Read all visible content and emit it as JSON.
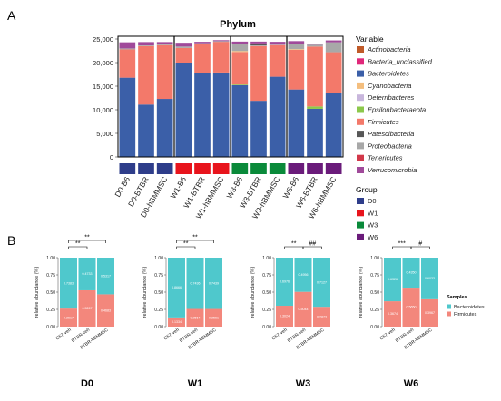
{
  "panel_a": {
    "letter": "A",
    "title": "Phylum",
    "legend_title": "Variable",
    "group_legend_title": "Group",
    "y_ticks": [
      "0",
      "5,000",
      "10,000",
      "15,000",
      "20,000",
      "25,000"
    ],
    "samples": [
      "D0-B6",
      "D0-BTBR",
      "D0-hBMMSC",
      "W1-B6",
      "W1-BTBR",
      "W1-hBMMSC",
      "W3-B6",
      "W3-BTBR",
      "W3-hBMMSC",
      "W6-B6",
      "W6-BTBR",
      "W6-hBMMSC"
    ],
    "phyla": [
      {
        "name": "Actinobacteria",
        "color": "#C05A28"
      },
      {
        "name": "Bacteria_unclassified",
        "color": "#E0287A"
      },
      {
        "name": "Bacteroidetes",
        "color": "#3B5FA8"
      },
      {
        "name": "Cyanobacteria",
        "color": "#F4BE7E"
      },
      {
        "name": "Deferribacteres",
        "color": "#C8B6DC"
      },
      {
        "name": "Epsilonbacteraeota",
        "color": "#8CC84B"
      },
      {
        "name": "Firmicutes",
        "color": "#F3796A"
      },
      {
        "name": "Patescibacteria",
        "color": "#575757"
      },
      {
        "name": "Proteobacteria",
        "color": "#A8A8A8"
      },
      {
        "name": "Tenericutes",
        "color": "#D2384A"
      },
      {
        "name": "Verrucomicrobia",
        "color": "#A04A9A"
      }
    ],
    "groups": [
      {
        "name": "D0",
        "color": "#2E3D8A"
      },
      {
        "name": "W1",
        "color": "#E8141C"
      },
      {
        "name": "W3",
        "color": "#0A8A3A"
      },
      {
        "name": "W6",
        "color": "#6A1B7A"
      }
    ]
  },
  "panel_b": {
    "letter": "B",
    "ylabel": "relative abundance (%)",
    "y_ticks": [
      "0.00",
      "0.25",
      "0.50",
      "0.75",
      "1.00"
    ],
    "legend_title": "Samples",
    "series": [
      {
        "name": "Bacteroidetes",
        "color": "#4FC8CC"
      },
      {
        "name": "Firmicutes",
        "color": "#F3877C"
      }
    ],
    "categories": [
      "C57-veh",
      "BTBR-veh",
      "BTBR-hBMMSC"
    ]
  },
  "chart_data": [
    {
      "type": "bar",
      "title": "Phylum",
      "stacked": true,
      "ylim": [
        0,
        25000
      ],
      "categories": [
        "D0-B6",
        "D0-BTBR",
        "D0-hBMMSC",
        "W1-B6",
        "W1-BTBR",
        "W1-hBMMSC",
        "W3-B6",
        "W3-BTBR",
        "W3-hBMMSC",
        "W6-B6",
        "W6-BTBR",
        "W6-hBMMSC"
      ],
      "series": [
        {
          "name": "Bacteroidetes",
          "values": [
            16800,
            11100,
            12300,
            20000,
            17700,
            17900,
            15200,
            11900,
            17000,
            14300,
            10200,
            13600
          ]
        },
        {
          "name": "Epsilonbacteraeota",
          "values": [
            0,
            0,
            0,
            0,
            0,
            0,
            150,
            0,
            0,
            0,
            500,
            0
          ]
        },
        {
          "name": "Firmicutes",
          "values": [
            6000,
            12400,
            11400,
            3100,
            6200,
            6500,
            6900,
            11600,
            6700,
            8400,
            12700,
            8600
          ]
        },
        {
          "name": "Cyanobacteria",
          "values": [
            0,
            0,
            0,
            0,
            0,
            0,
            200,
            0,
            0,
            150,
            0,
            0
          ]
        },
        {
          "name": "Proteobacteria",
          "values": [
            200,
            150,
            150,
            300,
            200,
            150,
            1500,
            150,
            100,
            1000,
            400,
            2100
          ]
        },
        {
          "name": "Patescibacteria",
          "values": [
            0,
            0,
            0,
            0,
            0,
            0,
            0,
            200,
            0,
            0,
            0,
            0
          ]
        },
        {
          "name": "Tenericutes",
          "values": [
            0,
            0,
            0,
            0,
            0,
            0,
            0,
            200,
            0,
            0,
            0,
            0
          ]
        },
        {
          "name": "Verrucomicrobia",
          "values": [
            1300,
            700,
            500,
            800,
            300,
            200,
            500,
            400,
            600,
            700,
            200,
            400
          ]
        }
      ]
    },
    {
      "type": "bar",
      "stacked": true,
      "title": "D0",
      "ylim": [
        0,
        1
      ],
      "categories": [
        "C57-veh",
        "BTBR-veh",
        "BTBR-hBMMSC"
      ],
      "series": [
        {
          "name": "Firmicutes",
          "values": [
            0.2617,
            0.5267,
            0.4683
          ]
        },
        {
          "name": "Bacteroidetes",
          "values": [
            0.7383,
            0.4733,
            0.5317
          ]
        }
      ],
      "labels": {
        "Firmicutes": [
          "0.2617",
          "0.5267",
          "0.4683"
        ],
        "Bacteroidetes": [
          "0.7383",
          "0.4733",
          "0.5317"
        ]
      },
      "significance": [
        {
          "from": 0,
          "to": 1,
          "label": "**"
        },
        {
          "from": 0,
          "to": 2,
          "label": "**"
        }
      ]
    },
    {
      "type": "bar",
      "stacked": true,
      "title": "W1",
      "ylim": [
        0,
        1
      ],
      "categories": [
        "C57-veh",
        "BTBR-veh",
        "BTBR-hBMMSC"
      ],
      "series": [
        {
          "name": "Firmicutes",
          "values": [
            0.1334,
            0.2564,
            0.2561
          ]
        },
        {
          "name": "Bacteroidetes",
          "values": [
            0.8666,
            0.7436,
            0.7439
          ]
        }
      ],
      "labels": {
        "Firmicutes": [
          "0.1334",
          "0.2564",
          "0.2561"
        ],
        "Bacteroidetes": [
          "0.8666",
          "0.7436",
          "0.7439"
        ]
      },
      "significance": [
        {
          "from": 0,
          "to": 1,
          "label": "**"
        },
        {
          "from": 0,
          "to": 2,
          "label": "**"
        }
      ]
    },
    {
      "type": "bar",
      "stacked": true,
      "title": "W3",
      "ylim": [
        0,
        1
      ],
      "categories": [
        "C57-veh",
        "BTBR-veh",
        "BTBR-hBMMSC"
      ],
      "series": [
        {
          "name": "Firmicutes",
          "values": [
            0.3024,
            0.5044,
            0.2873
          ]
        },
        {
          "name": "Bacteroidetes",
          "values": [
            0.6976,
            0.4956,
            0.7127
          ]
        }
      ],
      "labels": {
        "Firmicutes": [
          "0.3024",
          "0.5044",
          "0.2873"
        ],
        "Bacteroidetes": [
          "0.6976",
          "0.4956",
          "0.7127"
        ]
      },
      "significance": [
        {
          "from": 0,
          "to": 1,
          "label": "**"
        },
        {
          "from": 1,
          "to": 2,
          "label": "##"
        }
      ]
    },
    {
      "type": "bar",
      "stacked": true,
      "title": "W6",
      "ylim": [
        0,
        1
      ],
      "categories": [
        "C57-veh",
        "BTBR-veh",
        "BTBR-hBMMSC"
      ],
      "series": [
        {
          "name": "Firmicutes",
          "values": [
            0.3674,
            0.565,
            0.3967
          ]
        },
        {
          "name": "Bacteroidetes",
          "values": [
            0.6326,
            0.435,
            0.6033
          ]
        }
      ],
      "labels": {
        "Firmicutes": [
          "0.3674",
          "0.5650",
          "0.3967"
        ],
        "Bacteroidetes": [
          "0.6326",
          "0.4350",
          "0.6033"
        ]
      },
      "significance": [
        {
          "from": 0,
          "to": 1,
          "label": "***"
        },
        {
          "from": 1,
          "to": 2,
          "label": "#"
        }
      ]
    }
  ]
}
